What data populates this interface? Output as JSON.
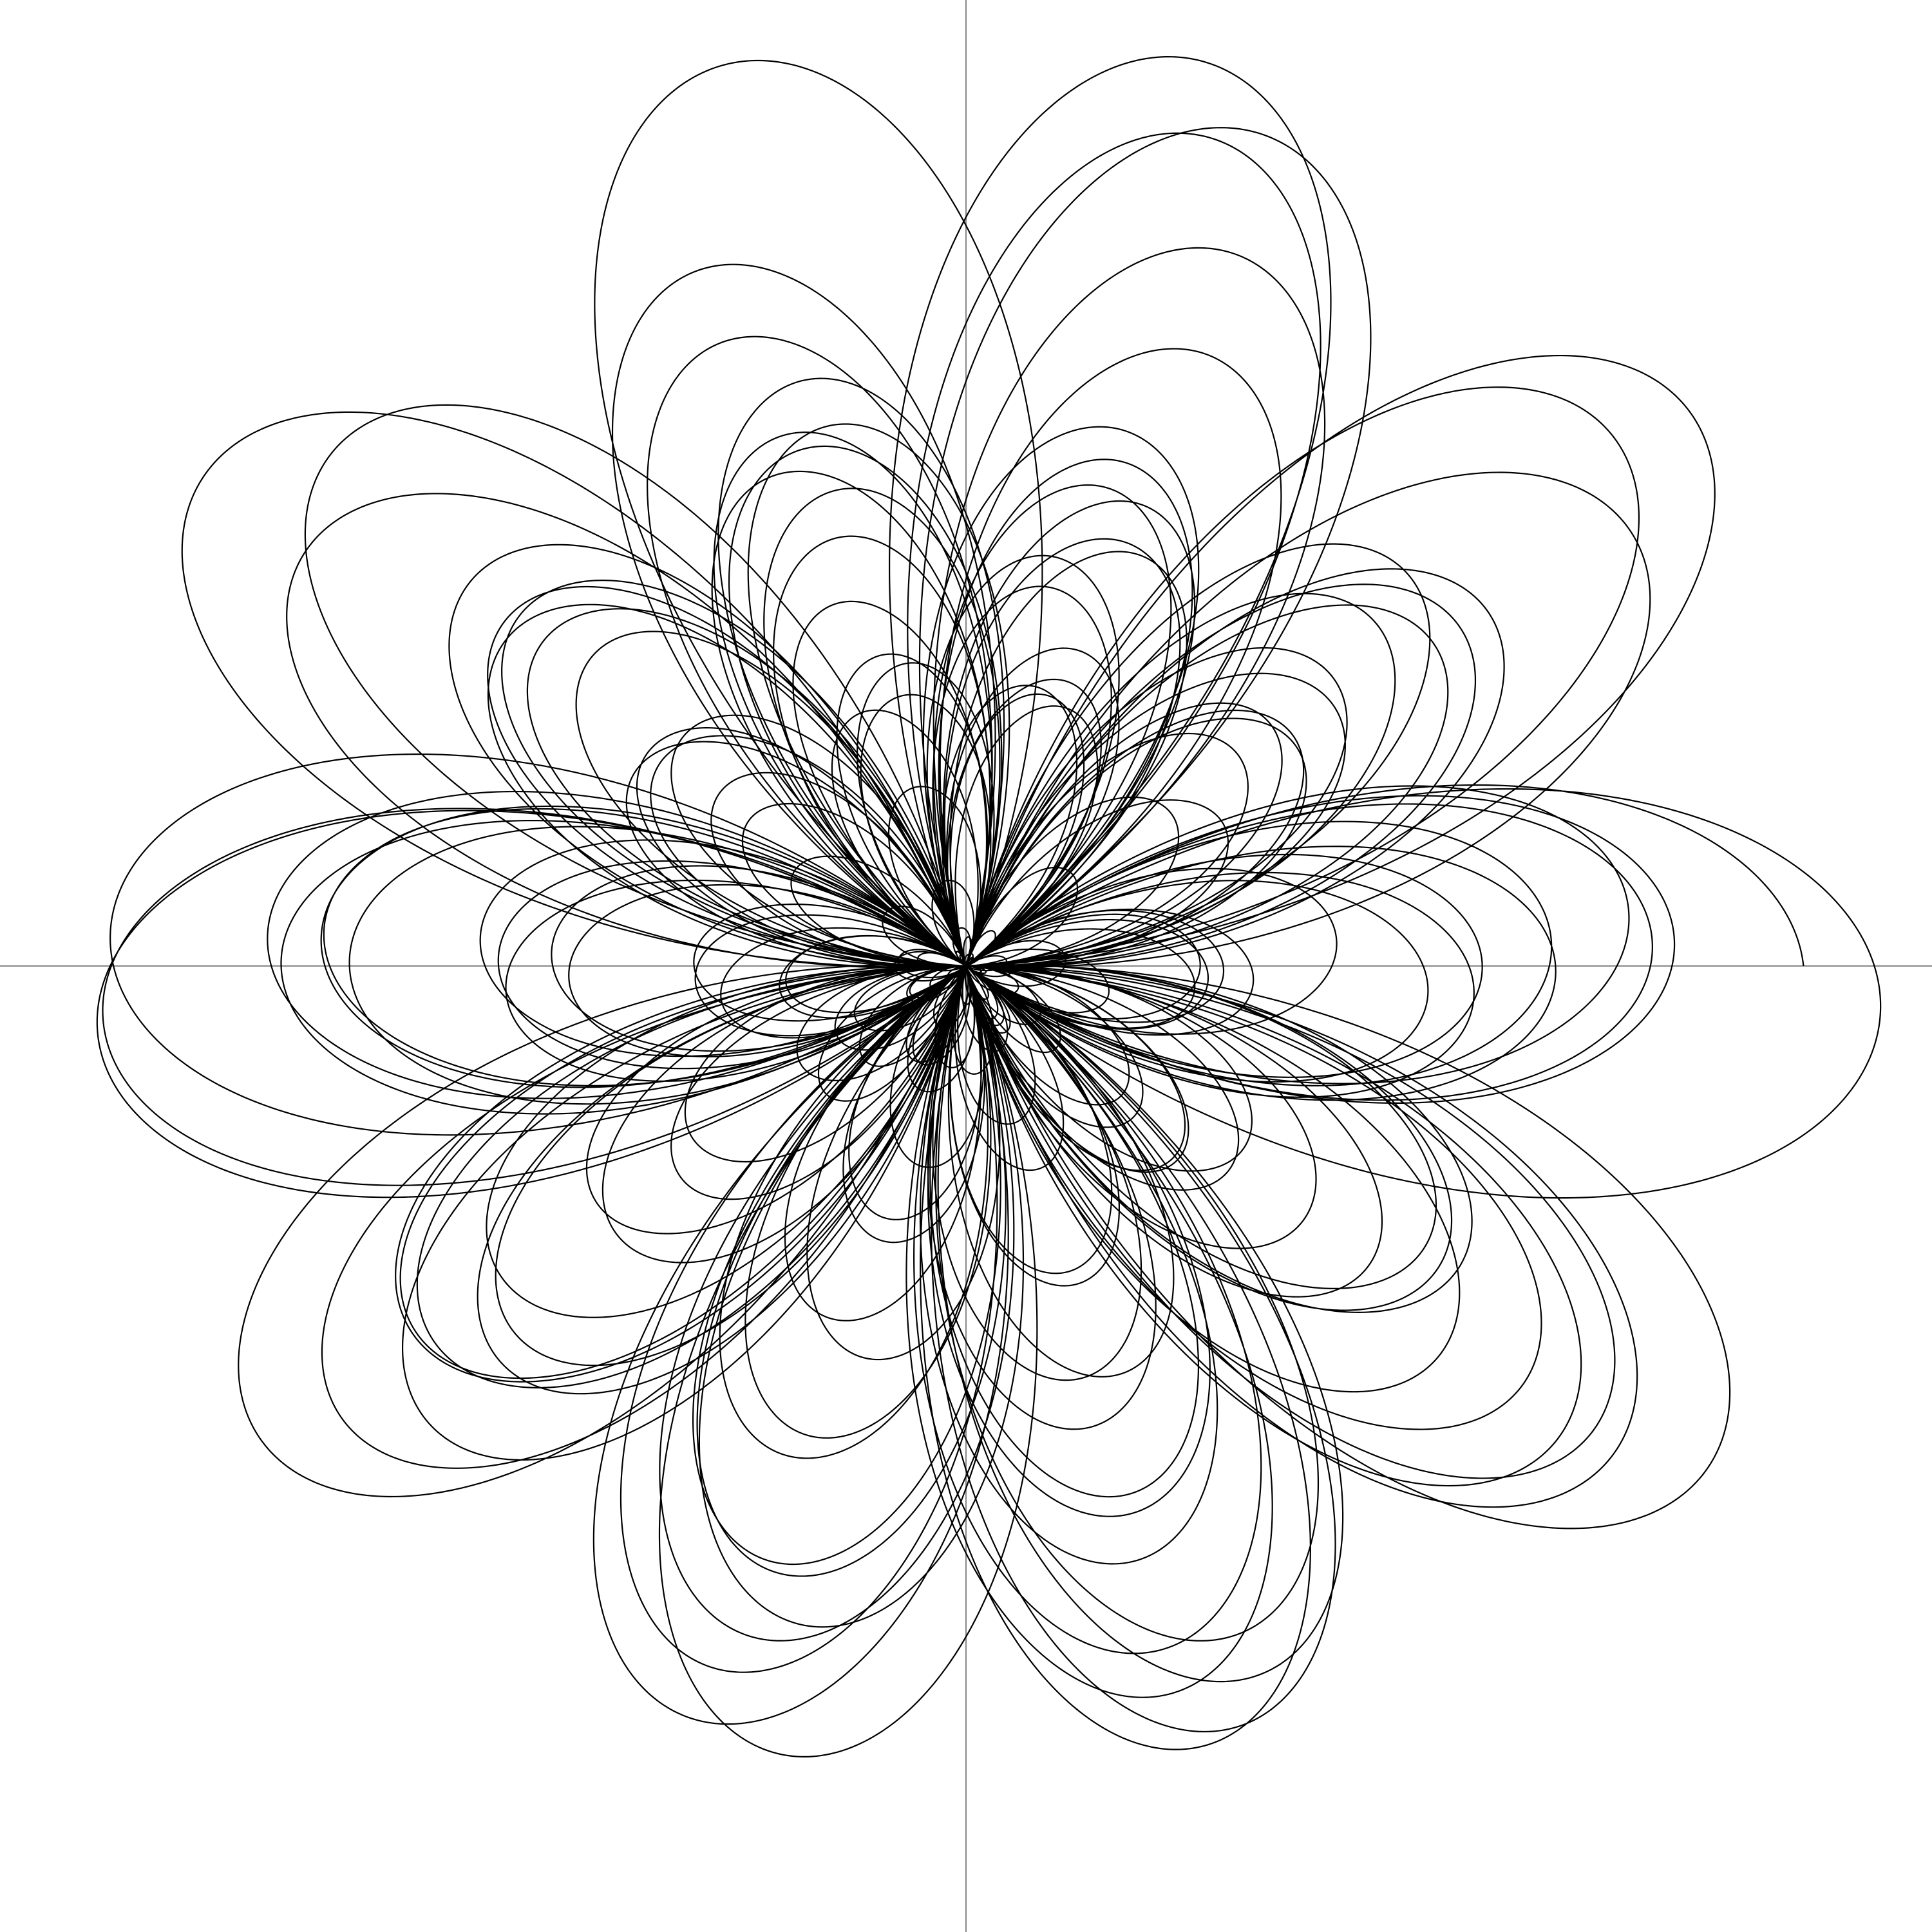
{
  "chart_data": {
    "type": "line",
    "kind": "polar-curve",
    "title": "",
    "xlabel": "",
    "ylabel": "",
    "petals": 5,
    "r_max": 1.0,
    "axes": {
      "show": true,
      "crosshair_at_origin": true,
      "color": "#888888"
    },
    "grid": false,
    "legend": "none",
    "series": [
      {
        "stroke": "#000000",
        "wraps": 40,
        "terms": [
          {
            "freq": 2.5,
            "amp": 1.0,
            "phase": 0.0
          },
          {
            "freq": 0.5,
            "amp": 0.0,
            "phase": 0.0
          }
        ],
        "note_shape": "rose with lobes of varying amplitude"
      }
    ]
  }
}
